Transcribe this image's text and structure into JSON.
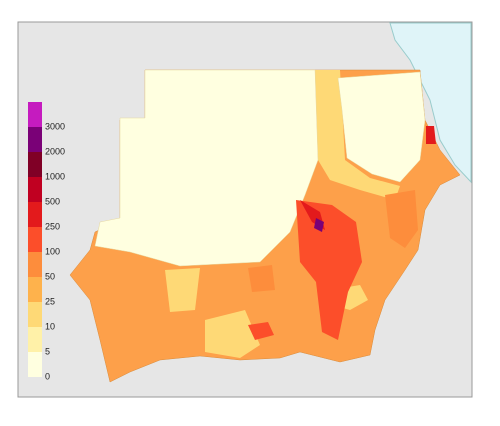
{
  "legend": {
    "breaks": [
      0,
      5,
      10,
      25,
      50,
      100,
      250,
      500,
      1000,
      2000,
      3000
    ],
    "colors": [
      "#ffffe0",
      "#fff1a8",
      "#fed976",
      "#feb24c",
      "#fd8d3c",
      "#fc4e2a",
      "#e31a1c",
      "#c00021",
      "#800026",
      "#7a0177",
      "#c51bbf"
    ]
  }
}
